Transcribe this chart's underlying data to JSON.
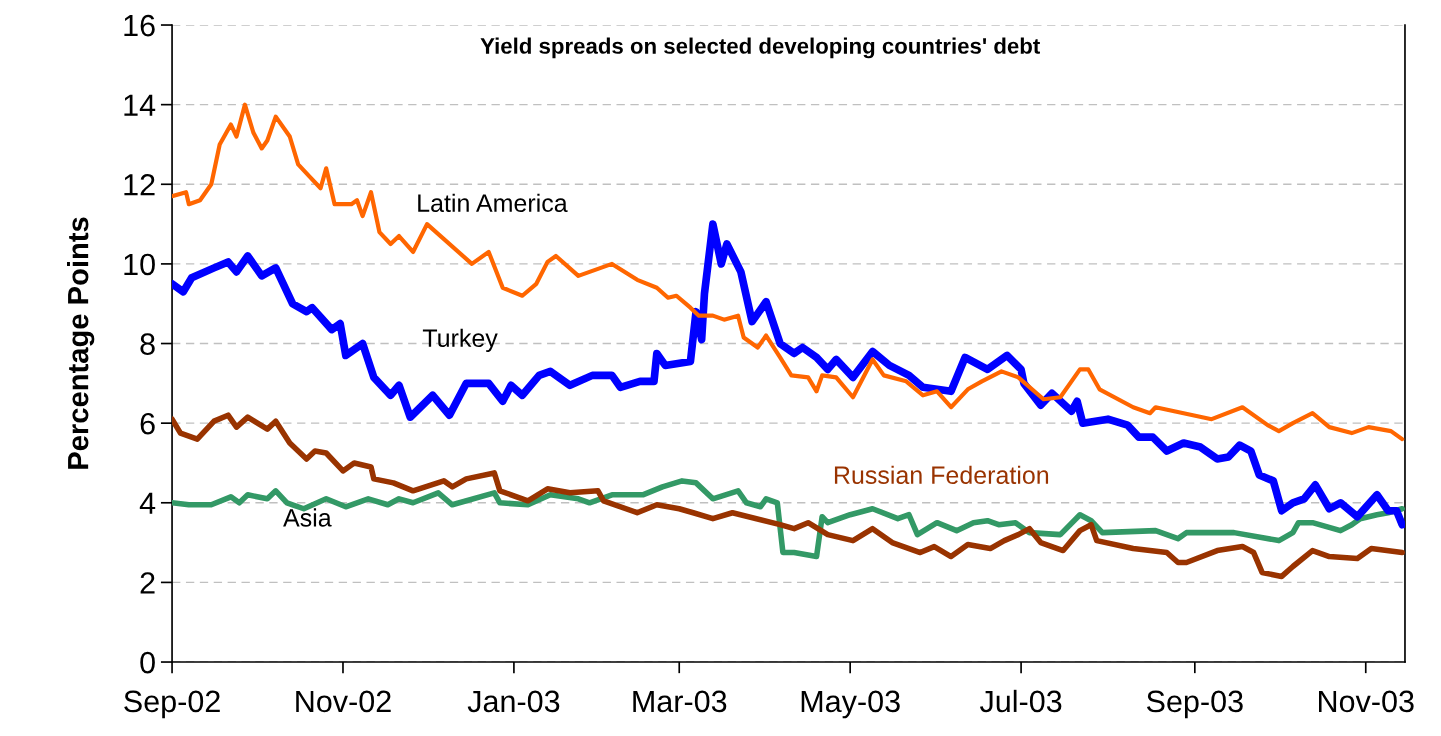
{
  "chart_data": {
    "type": "line",
    "title": "Yield spreads on selected developing countries' debt",
    "ylabel": "Percentage Points",
    "xlim": [
      "2002-09-01",
      "2003-11-15"
    ],
    "ylim": [
      0,
      16
    ],
    "yticks": [
      0,
      2,
      4,
      6,
      8,
      10,
      12,
      14,
      16
    ],
    "xticks": [
      {
        "value": "2002-09-01",
        "label": "Sep-02"
      },
      {
        "value": "2002-11-01",
        "label": "Nov-02"
      },
      {
        "value": "2003-01-01",
        "label": "Jan-03"
      },
      {
        "value": "2003-03-01",
        "label": "Mar-03"
      },
      {
        "value": "2003-05-01",
        "label": "May-03"
      },
      {
        "value": "2003-07-01",
        "label": "Jul-03"
      },
      {
        "value": "2003-09-01",
        "label": "Sep-03"
      },
      {
        "value": "2003-11-01",
        "label": "Nov-03"
      }
    ],
    "grid": "y",
    "legend": false,
    "marker": "none",
    "line_style": "solid",
    "series": [
      {
        "name": "Latin America",
        "color": "#ff6600",
        "x": [
          "2002-09-01",
          "2002-09-06",
          "2002-09-07",
          "2002-09-11",
          "2002-09-15",
          "2002-09-18",
          "2002-09-22",
          "2002-09-24",
          "2002-09-27",
          "2002-09-30",
          "2002-10-03",
          "2002-10-05",
          "2002-10-08",
          "2002-10-13",
          "2002-10-16",
          "2002-10-20",
          "2002-10-24",
          "2002-10-26",
          "2002-10-29",
          "2002-11-04",
          "2002-11-06",
          "2002-11-08",
          "2002-11-11",
          "2002-11-14",
          "2002-11-18",
          "2002-11-21",
          "2002-11-26",
          "2002-12-01",
          "2002-12-17",
          "2002-12-23",
          "2002-12-28",
          "2003-01-04",
          "2003-01-09",
          "2003-01-13",
          "2003-01-16",
          "2003-01-24",
          "2003-02-05",
          "2003-02-14",
          "2003-02-21",
          "2003-02-25",
          "2003-02-28",
          "2003-03-05",
          "2003-03-08",
          "2003-03-13",
          "2003-03-17",
          "2003-03-22",
          "2003-03-24",
          "2003-03-29",
          "2003-04-01",
          "2003-04-06",
          "2003-04-10",
          "2003-04-16",
          "2003-04-19",
          "2003-04-21",
          "2003-04-26",
          "2003-05-02",
          "2003-05-09",
          "2003-05-13",
          "2003-05-21",
          "2003-05-27",
          "2003-06-01",
          "2003-06-06",
          "2003-06-12",
          "2003-06-17",
          "2003-06-24",
          "2003-06-30",
          "2003-07-09",
          "2003-07-15",
          "2003-07-22",
          "2003-07-25",
          "2003-07-29",
          "2003-08-10",
          "2003-08-16",
          "2003-08-18",
          "2003-09-07",
          "2003-09-18",
          "2003-09-27",
          "2003-10-01",
          "2003-10-06",
          "2003-10-13",
          "2003-10-19",
          "2003-10-27",
          "2003-11-02",
          "2003-11-10",
          "2003-11-14"
        ],
        "values": [
          11.7,
          11.8,
          11.5,
          11.6,
          12.0,
          13.0,
          13.5,
          13.2,
          14.0,
          13.3,
          12.9,
          13.1,
          13.7,
          13.2,
          12.5,
          12.2,
          11.9,
          12.4,
          11.5,
          11.5,
          11.6,
          11.2,
          11.8,
          10.8,
          10.5,
          10.7,
          10.3,
          11.0,
          10.0,
          10.3,
          9.4,
          9.2,
          9.5,
          10.05,
          10.2,
          9.7,
          10.0,
          9.6,
          9.4,
          9.15,
          9.2,
          8.9,
          8.7,
          8.7,
          8.6,
          8.7,
          8.15,
          7.9,
          8.2,
          7.65,
          7.2,
          7.15,
          6.8,
          7.2,
          7.15,
          6.65,
          7.6,
          7.2,
          7.05,
          6.7,
          6.8,
          6.4,
          6.85,
          7.05,
          7.3,
          7.15,
          6.6,
          6.65,
          7.35,
          7.35,
          6.85,
          6.4,
          6.25,
          6.4,
          6.1,
          6.4,
          5.95,
          5.8,
          6.0,
          6.25,
          5.9,
          5.75,
          5.9,
          5.8,
          5.6
        ]
      },
      {
        "name": "Turkey",
        "color": "#0000ff",
        "x": [
          "2002-09-01",
          "2002-09-05",
          "2002-09-08",
          "2002-09-16",
          "2002-09-21",
          "2002-09-24",
          "2002-09-28",
          "2002-10-03",
          "2002-10-08",
          "2002-10-14",
          "2002-10-19",
          "2002-10-21",
          "2002-10-28",
          "2002-10-31",
          "2002-11-02",
          "2002-11-08",
          "2002-11-12",
          "2002-11-18",
          "2002-11-21",
          "2002-11-25",
          "2002-12-03",
          "2002-12-09",
          "2002-12-15",
          "2002-12-23",
          "2002-12-28",
          "2002-12-31",
          "2003-01-04",
          "2003-01-10",
          "2003-01-14",
          "2003-01-21",
          "2003-01-29",
          "2003-02-05",
          "2003-02-08",
          "2003-02-15",
          "2003-02-20",
          "2003-02-21",
          "2003-02-24",
          "2003-03-05",
          "2003-03-07",
          "2003-03-09",
          "2003-03-10",
          "2003-03-13",
          "2003-03-16",
          "2003-03-18",
          "2003-03-23",
          "2003-03-27",
          "2003-04-01",
          "2003-04-06",
          "2003-04-11",
          "2003-04-14",
          "2003-04-19",
          "2003-04-23",
          "2003-04-26",
          "2003-05-02",
          "2003-05-09",
          "2003-05-15",
          "2003-05-22",
          "2003-05-27",
          "2003-06-06",
          "2003-06-11",
          "2003-06-19",
          "2003-06-26",
          "2003-07-01",
          "2003-07-02",
          "2003-07-08",
          "2003-07-12",
          "2003-07-19",
          "2003-07-21",
          "2003-07-23",
          "2003-08-01",
          "2003-08-08",
          "2003-08-12",
          "2003-08-17",
          "2003-08-22",
          "2003-08-28",
          "2003-09-03",
          "2003-09-09",
          "2003-09-13",
          "2003-09-17",
          "2003-09-21",
          "2003-09-24",
          "2003-09-29",
          "2003-10-02",
          "2003-10-06",
          "2003-10-10",
          "2003-10-14",
          "2003-10-19",
          "2003-10-23",
          "2003-10-29",
          "2003-11-05",
          "2003-11-09",
          "2003-11-12",
          "2003-11-14"
        ],
        "values": [
          9.5,
          9.3,
          9.65,
          9.9,
          10.05,
          9.8,
          10.2,
          9.7,
          9.9,
          9.0,
          8.8,
          8.9,
          8.35,
          8.5,
          7.7,
          8.0,
          7.15,
          6.7,
          6.95,
          6.15,
          6.7,
          6.2,
          7.0,
          7.0,
          6.55,
          6.95,
          6.7,
          7.2,
          7.3,
          6.95,
          7.2,
          7.2,
          6.9,
          7.05,
          7.05,
          7.75,
          7.45,
          7.55,
          8.8,
          8.1,
          9.25,
          11.0,
          10.0,
          10.5,
          9.8,
          8.55,
          9.05,
          8.0,
          7.75,
          7.9,
          7.65,
          7.35,
          7.6,
          7.15,
          7.8,
          7.45,
          7.2,
          6.9,
          6.8,
          7.65,
          7.35,
          7.7,
          7.35,
          7.0,
          6.45,
          6.75,
          6.3,
          6.55,
          6.0,
          6.1,
          5.95,
          5.65,
          5.65,
          5.3,
          5.5,
          5.4,
          5.1,
          5.15,
          5.45,
          5.3,
          4.7,
          4.55,
          3.8,
          4.0,
          4.1,
          4.45,
          3.85,
          4.0,
          3.65,
          4.2,
          3.8,
          3.8,
          3.45
        ]
      },
      {
        "name": "Russian Federation",
        "color": "#993300",
        "x": [
          "2002-09-01",
          "2002-09-04",
          "2002-09-10",
          "2002-09-16",
          "2002-09-21",
          "2002-09-24",
          "2002-09-28",
          "2002-10-05",
          "2002-10-08",
          "2002-10-13",
          "2002-10-19",
          "2002-10-22",
          "2002-10-26",
          "2002-11-01",
          "2002-11-05",
          "2002-11-11",
          "2002-11-12",
          "2002-11-19",
          "2002-11-26",
          "2002-12-07",
          "2002-12-10",
          "2002-12-15",
          "2002-12-25",
          "2002-12-27",
          "2003-01-06",
          "2003-01-13",
          "2003-01-21",
          "2003-01-31",
          "2003-02-02",
          "2003-02-14",
          "2003-02-21",
          "2003-03-01",
          "2003-03-06",
          "2003-03-13",
          "2003-03-20",
          "2003-04-06",
          "2003-04-11",
          "2003-04-16",
          "2003-04-23",
          "2003-05-02",
          "2003-05-09",
          "2003-05-16",
          "2003-05-26",
          "2003-05-31",
          "2003-06-06",
          "2003-06-12",
          "2003-06-20",
          "2003-06-25",
          "2003-06-30",
          "2003-07-04",
          "2003-07-08",
          "2003-07-16",
          "2003-07-22",
          "2003-07-26",
          "2003-07-28",
          "2003-08-10",
          "2003-08-22",
          "2003-08-26",
          "2003-08-29",
          "2003-09-09",
          "2003-09-18",
          "2003-09-22",
          "2003-09-25",
          "2003-10-02",
          "2003-10-06",
          "2003-10-13",
          "2003-10-19",
          "2003-10-29",
          "2003-11-03",
          "2003-11-14"
        ],
        "values": [
          6.1,
          5.75,
          5.6,
          6.05,
          6.2,
          5.9,
          6.15,
          5.85,
          6.05,
          5.5,
          5.1,
          5.3,
          5.25,
          4.8,
          5.0,
          4.9,
          4.6,
          4.5,
          4.3,
          4.55,
          4.4,
          4.6,
          4.75,
          4.3,
          4.05,
          4.35,
          4.25,
          4.3,
          4.05,
          3.75,
          3.95,
          3.85,
          3.75,
          3.6,
          3.75,
          3.45,
          3.35,
          3.5,
          3.2,
          3.05,
          3.35,
          3.0,
          2.75,
          2.9,
          2.65,
          2.95,
          2.85,
          3.05,
          3.2,
          3.35,
          3.0,
          2.8,
          3.3,
          3.45,
          3.05,
          2.85,
          2.75,
          2.5,
          2.5,
          2.8,
          2.9,
          2.75,
          2.25,
          2.15,
          2.4,
          2.8,
          2.65,
          2.6,
          2.85,
          2.75
        ]
      },
      {
        "name": "Asia",
        "color": "#339966",
        "x": [
          "2002-09-01",
          "2002-09-07",
          "2002-09-15",
          "2002-09-22",
          "2002-09-25",
          "2002-09-28",
          "2002-10-05",
          "2002-10-08",
          "2002-10-12",
          "2002-10-18",
          "2002-10-26",
          "2002-11-02",
          "2002-11-10",
          "2002-11-17",
          "2002-11-21",
          "2002-11-26",
          "2002-12-05",
          "2002-12-10",
          "2002-12-25",
          "2002-12-27",
          "2003-01-06",
          "2003-01-14",
          "2003-01-24",
          "2003-01-28",
          "2003-02-05",
          "2003-02-16",
          "2003-02-23",
          "2003-03-02",
          "2003-03-07",
          "2003-03-13",
          "2003-03-22",
          "2003-03-25",
          "2003-03-30",
          "2003-04-01",
          "2003-04-05",
          "2003-04-07",
          "2003-04-11",
          "2003-04-19",
          "2003-04-21",
          "2003-04-23",
          "2003-05-01",
          "2003-05-09",
          "2003-05-18",
          "2003-05-22",
          "2003-05-25",
          "2003-06-01",
          "2003-06-08",
          "2003-06-14",
          "2003-06-19",
          "2003-06-23",
          "2003-06-29",
          "2003-07-04",
          "2003-07-15",
          "2003-07-22",
          "2003-07-26",
          "2003-07-30",
          "2003-08-18",
          "2003-08-26",
          "2003-08-29",
          "2003-09-15",
          "2003-10-01",
          "2003-10-06",
          "2003-10-08",
          "2003-10-13",
          "2003-10-18",
          "2003-10-23",
          "2003-10-27",
          "2003-10-30",
          "2003-11-05",
          "2003-11-09",
          "2003-11-14"
        ],
        "values": [
          4.0,
          3.95,
          3.95,
          4.15,
          4.0,
          4.2,
          4.1,
          4.3,
          4.0,
          3.85,
          4.1,
          3.9,
          4.1,
          3.95,
          4.1,
          4.0,
          4.25,
          3.95,
          4.25,
          4.0,
          3.95,
          4.2,
          4.1,
          4.0,
          4.2,
          4.2,
          4.4,
          4.55,
          4.5,
          4.1,
          4.3,
          4.0,
          3.9,
          4.1,
          4.0,
          2.75,
          2.75,
          2.65,
          3.65,
          3.5,
          3.7,
          3.85,
          3.6,
          3.7,
          3.2,
          3.5,
          3.3,
          3.5,
          3.55,
          3.45,
          3.5,
          3.25,
          3.2,
          3.7,
          3.55,
          3.25,
          3.3,
          3.1,
          3.25,
          3.25,
          3.05,
          3.25,
          3.5,
          3.5,
          3.4,
          3.3,
          3.45,
          3.6,
          3.7,
          3.75,
          3.85
        ]
      }
    ]
  }
}
